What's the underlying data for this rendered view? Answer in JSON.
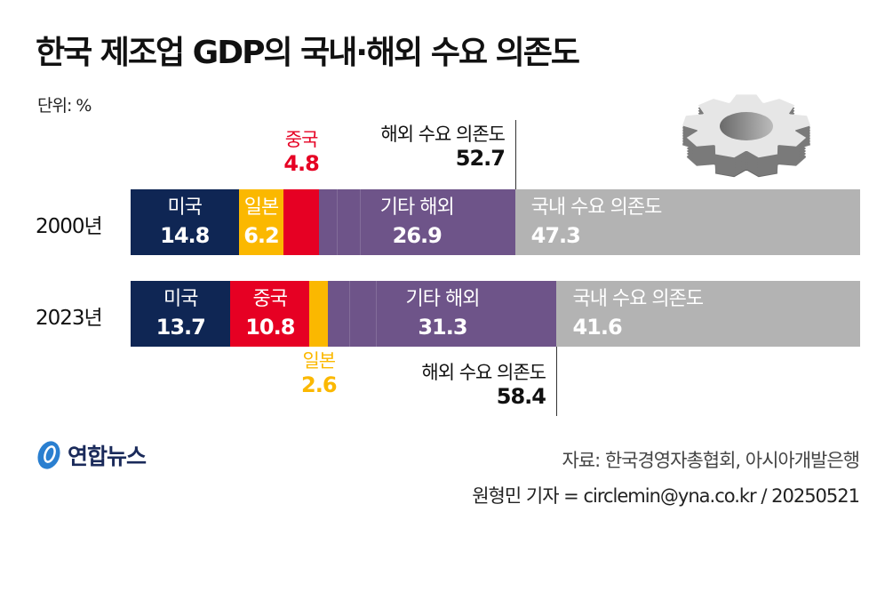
{
  "title": "한국 제조업 GDP의 국내·해외 수요 의존도",
  "unit": "단위: %",
  "colors": {
    "미국": "#0f2654",
    "일본": "#fbb800",
    "중국": "#e60023",
    "기타 해외": "#6e5489",
    "국내 수요 의존도": "#b3b3b3"
  },
  "chart_data": {
    "type": "bar",
    "orientation": "horizontal-stacked",
    "title": "한국 제조업 GDP의 국내·해외 수요 의존도",
    "unit": "단위: %",
    "categories": [
      "2000년",
      "2023년"
    ],
    "bars": [
      {
        "year": "2000년",
        "segments": [
          {
            "name": "미국",
            "value": 14.8
          },
          {
            "name": "일본",
            "value": 6.2
          },
          {
            "name": "중국",
            "value": 4.8
          },
          {
            "name": "기타 해외",
            "value": 26.9
          },
          {
            "name": "국내 수요 의존도",
            "value": 47.3
          }
        ],
        "overseas_label": "해외 수요 의존도",
        "overseas_total": 52.7
      },
      {
        "year": "2023년",
        "segments": [
          {
            "name": "미국",
            "value": 13.7
          },
          {
            "name": "중국",
            "value": 10.8
          },
          {
            "name": "일본",
            "value": 2.6
          },
          {
            "name": "기타 해외",
            "value": 31.3
          },
          {
            "name": "국내 수요 의존도",
            "value": 41.6
          }
        ],
        "overseas_label": "해외 수요 의존도",
        "overseas_total": 58.4
      }
    ],
    "xlim": [
      0,
      100
    ]
  },
  "footer": {
    "logo": "연합뉴스",
    "source": "자료: 한국경영자총협회, 아시아개발은행",
    "byline": "원형민 기자 = circlemin@yna.co.kr / 20250521"
  }
}
